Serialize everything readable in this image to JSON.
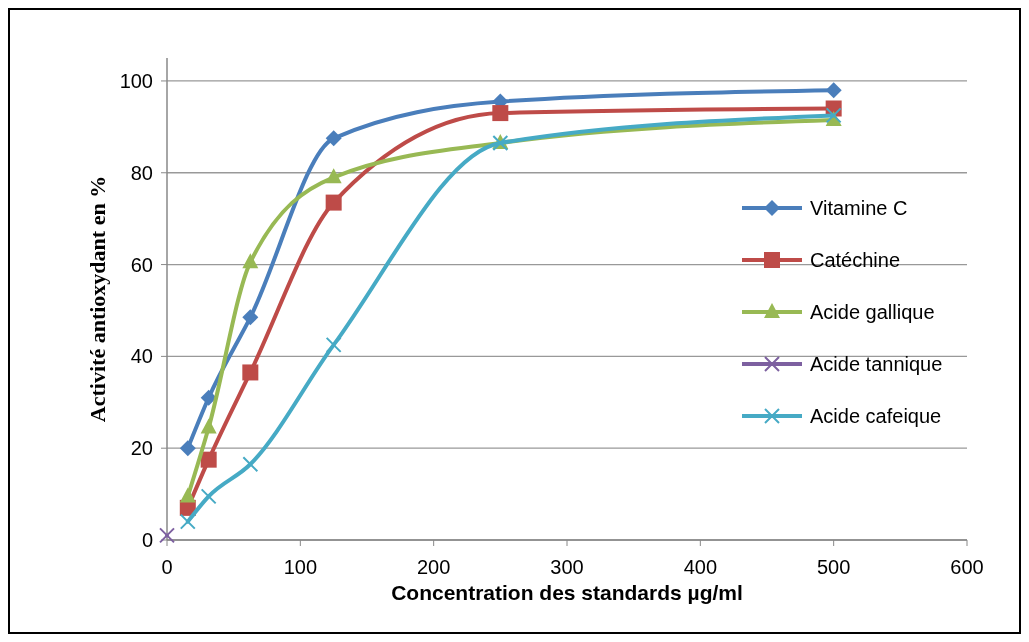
{
  "chart_data": {
    "type": "line",
    "xlabel": "Concentration des standards µg/ml",
    "ylabel": "Activité antioxydant en %",
    "xlim": [
      0,
      600
    ],
    "xticks": [
      0,
      100,
      200,
      300,
      400,
      500,
      600
    ],
    "ylim": [
      0,
      105
    ],
    "yticks": [
      0,
      20,
      40,
      60,
      80,
      100
    ],
    "grid": "y",
    "legend": "right",
    "series": [
      {
        "name": "Vitamine C",
        "color": "#4a7ebb",
        "marker": "diamond",
        "x": [
          15.6,
          31.25,
          62.5,
          125,
          250,
          500
        ],
        "values": [
          20,
          31,
          48.5,
          87.5,
          95.5,
          98
        ]
      },
      {
        "name": "Catéchine",
        "color": "#be4b48",
        "marker": "square",
        "x": [
          15.6,
          31.25,
          62.5,
          125,
          250,
          500
        ],
        "values": [
          7,
          17.5,
          36.5,
          73.5,
          93,
          94
        ]
      },
      {
        "name": "Acide gallique",
        "color": "#98b954",
        "marker": "triangle",
        "x": [
          15.6,
          31.25,
          62.5,
          125,
          250,
          500
        ],
        "values": [
          9.5,
          24.5,
          60.5,
          79,
          86.5,
          91.5
        ]
      },
      {
        "name": "Acide tannique",
        "color": "#7d60a0",
        "marker": "cross",
        "x": [
          0
        ],
        "values": [
          1
        ]
      },
      {
        "name": "Acide cafeique",
        "color": "#46aac5",
        "marker": "cross",
        "x": [
          15.6,
          31.25,
          62.5,
          125,
          250,
          500
        ],
        "values": [
          4,
          9.5,
          16.5,
          42.5,
          86.5,
          92.5
        ]
      }
    ]
  }
}
